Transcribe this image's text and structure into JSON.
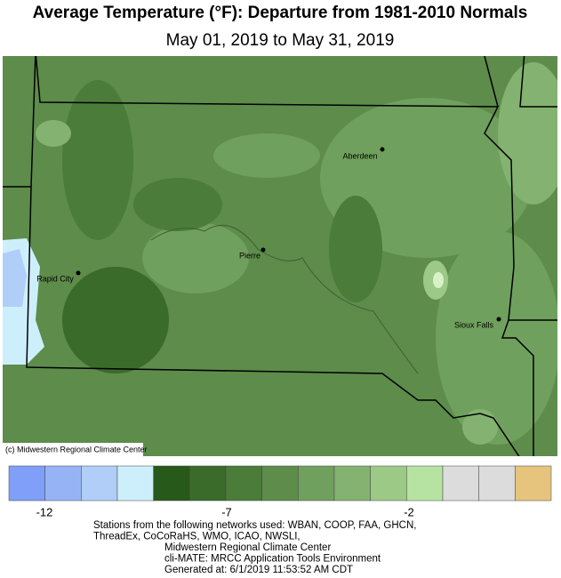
{
  "header": {
    "title": "Average Temperature (°F): Departure from 1981-2010 Normals",
    "subtitle": "May 01, 2019 to May 31, 2019"
  },
  "map": {
    "cities": [
      "Aberdeen",
      "Pierre",
      "Rapid City",
      "Sioux Falls"
    ],
    "credit": "(c) Midwestern Regional Climate Center"
  },
  "legend": {
    "colors": [
      "#7f9ff8",
      "#96b4f5",
      "#b0cef8",
      "#cdeffb",
      "#27591a",
      "#3a6b2a",
      "#4b7c39",
      "#5d8c4b",
      "#70a05d",
      "#84b270",
      "#9cc985",
      "#b6e3a2",
      "#dcdcdc",
      "#dcdcdc",
      "#e6c47e"
    ],
    "ticks": [
      -12,
      -7,
      -2
    ]
  },
  "footer": {
    "lines": [
      "Stations from the following networks used: WBAN, COOP, FAA, GHCN,",
      "ThreadEx, CoCoRaHS, WMO, ICAO, NWSLI,",
      "Midwestern Regional Climate Center",
      "cli-MATE: MRCC Application Tools Environment",
      "Generated at: 6/1/2019 11:53:52 AM CDT"
    ]
  }
}
